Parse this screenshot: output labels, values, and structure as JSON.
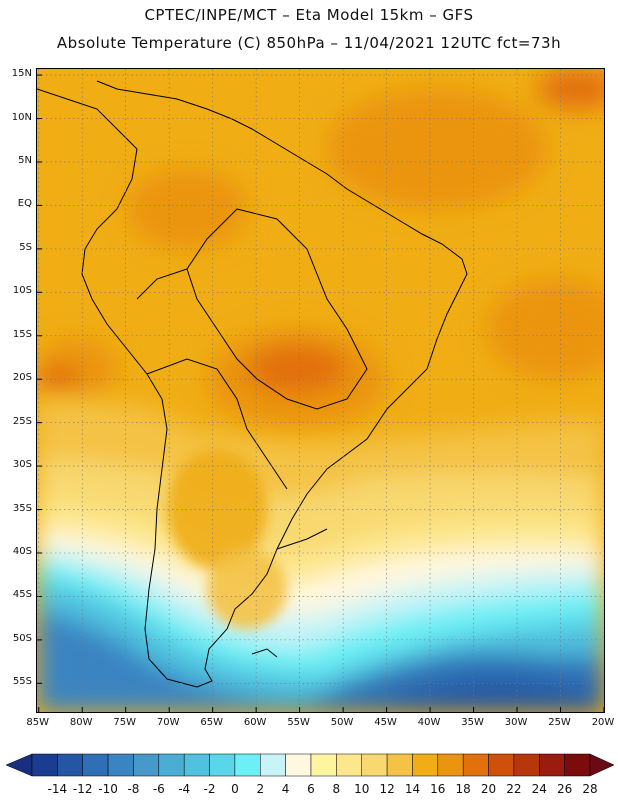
{
  "header": {
    "line1": "CPTEC/INPE/MCT –  Eta Model 15km – GFS",
    "line2": "Absolute Temperature (C) 850hPa – 11/04/2021 12UTC fct=73h"
  },
  "map": {
    "lat_labels": [
      "15N",
      "10N",
      "5N",
      "EQ",
      "5S",
      "10S",
      "15S",
      "20S",
      "25S",
      "30S",
      "35S",
      "40S",
      "45S",
      "50S",
      "55S"
    ],
    "lon_labels": [
      "85W",
      "80W",
      "75W",
      "70W",
      "65W",
      "60W",
      "55W",
      "50W",
      "45W",
      "40W",
      "35W",
      "30W",
      "25W",
      "20W"
    ],
    "lat_values": [
      15,
      10,
      5,
      0,
      -5,
      -10,
      -15,
      -20,
      -25,
      -30,
      -35,
      -40,
      -45,
      -50,
      -55
    ],
    "lon_values": [
      -85,
      -80,
      -75,
      -70,
      -65,
      -60,
      -55,
      -50,
      -45,
      -40,
      -35,
      -30,
      -25,
      -20
    ],
    "lat_range": [
      15.7,
      -58.3
    ],
    "lon_range": [
      -85.2,
      -20.0
    ]
  },
  "colorbar": {
    "labels": [
      "-14",
      "-12",
      "-10",
      "-8",
      "-6",
      "-4",
      "-2",
      "0",
      "2",
      "4",
      "6",
      "8",
      "10",
      "12",
      "14",
      "16",
      "18",
      "20",
      "22",
      "24",
      "26",
      "28"
    ],
    "colors": [
      "#1a3d91",
      "#2457a3",
      "#2f6fb5",
      "#3a84c2",
      "#4699c9",
      "#4bacd4",
      "#50c1df",
      "#5ad6ea",
      "#6cf0f5",
      "#c8f3f7",
      "#fff8e0",
      "#fff5a0",
      "#fde78c",
      "#f8d870",
      "#f4c245",
      "#f0ad14",
      "#eb9410",
      "#e2700c",
      "#cf500b",
      "#b7360c",
      "#9a1c0e",
      "#7a0c0c"
    ],
    "low_color": "#1a2e80",
    "high_color": "#6a0a14"
  }
}
